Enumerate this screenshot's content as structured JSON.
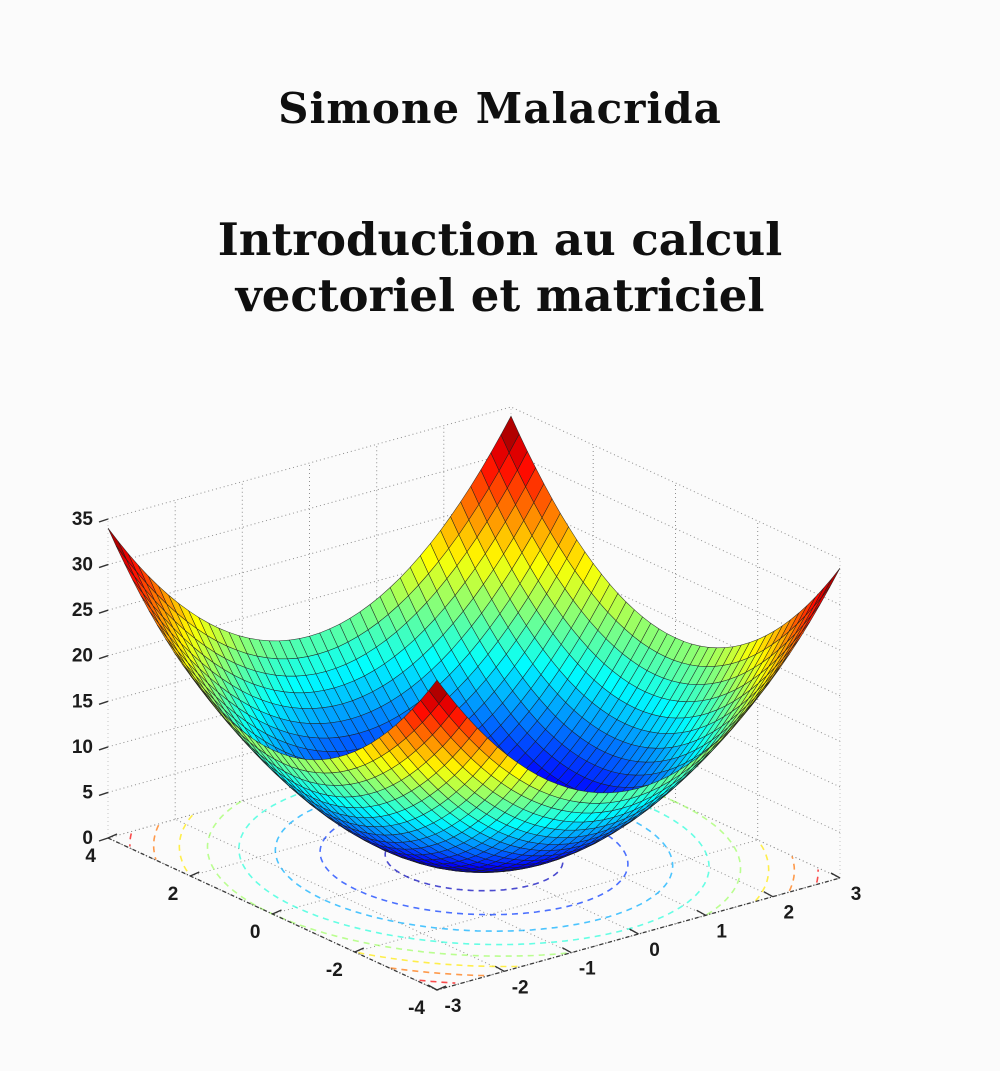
{
  "page": {
    "background": "#fbfbfb"
  },
  "cover": {
    "author": "Simone Malacrida",
    "title_line1": "Introduction au calcul",
    "title_line2": "vectoriel et matriciel",
    "text_color": "#0f0f0f"
  },
  "chart_data": {
    "type": "surface",
    "title": "",
    "description": "MATLAB-style 3D mesh surface of an elliptic paraboloid z = 2x^2 + y^2 with dotted axis grid and jet-colored contour rings projected on the floor plane; red peaks of height 34 rise at the four domain corners and the dark-blue bowl minimum of 0 sits at the center",
    "surface": {
      "expression": "z = 2*x^2 + y^2",
      "coeff_x2": 2,
      "coeff_y2": 1
    },
    "x_range": [
      -3,
      3
    ],
    "y_range": [
      -4,
      4
    ],
    "z_range": [
      0,
      35
    ],
    "x_ticks": [
      -3,
      -2,
      -1,
      0,
      1,
      2,
      3
    ],
    "y_ticks": [
      4,
      2,
      0,
      -2,
      -4
    ],
    "z_ticks": [
      0,
      5,
      10,
      15,
      20,
      25,
      30,
      35
    ],
    "z_peak_value": 34,
    "z_min_value": 0,
    "colormap": "jet",
    "mesh_divisions": 40,
    "contour_levels": [
      2,
      6,
      10,
      14,
      18,
      22,
      26,
      30
    ],
    "grid": "dotted",
    "legend": "none",
    "view": {
      "azimuth_deg": -37.5,
      "elevation_deg": 30
    }
  }
}
